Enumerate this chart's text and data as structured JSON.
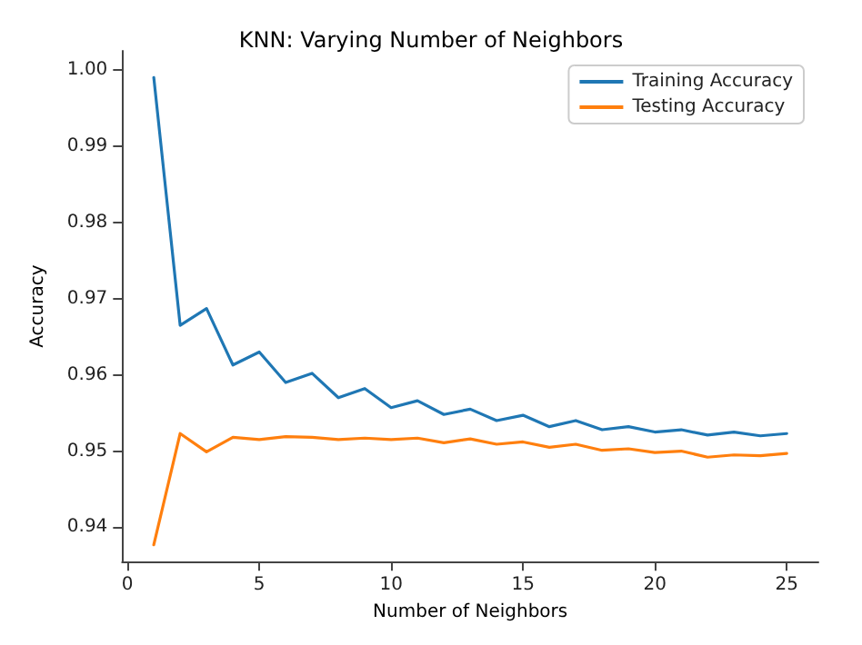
{
  "chart_data": {
    "type": "line",
    "title": "KNN: Varying Number of Neighbors",
    "xlabel": "Number of Neighbors",
    "ylabel": "Accuracy",
    "x": [
      1,
      2,
      3,
      4,
      5,
      6,
      7,
      8,
      9,
      10,
      11,
      12,
      13,
      14,
      15,
      16,
      17,
      18,
      19,
      20,
      21,
      22,
      23,
      24,
      25
    ],
    "series": [
      {
        "name": "Training Accuracy",
        "color": "#1f77b4",
        "values": [
          0.999,
          0.9665,
          0.9687,
          0.9613,
          0.963,
          0.959,
          0.9602,
          0.957,
          0.9582,
          0.9557,
          0.9566,
          0.9548,
          0.9555,
          0.954,
          0.9547,
          0.9532,
          0.954,
          0.9528,
          0.9532,
          0.9525,
          0.9528,
          0.9521,
          0.9525,
          0.952,
          0.9523
        ]
      },
      {
        "name": "Testing Accuracy",
        "color": "#ff7f0e",
        "values": [
          0.9377,
          0.9523,
          0.9499,
          0.9518,
          0.9515,
          0.9519,
          0.9518,
          0.9515,
          0.9517,
          0.9515,
          0.9517,
          0.9511,
          0.9516,
          0.9509,
          0.9512,
          0.9505,
          0.9509,
          0.9501,
          0.9503,
          0.9498,
          0.95,
          0.9492,
          0.9495,
          0.9494,
          0.9497
        ]
      }
    ],
    "xlim": [
      -0.2,
      26.2
    ],
    "xticks": [
      0,
      5,
      10,
      15,
      20,
      25
    ],
    "ylim": [
      0.9355,
      1.0025
    ],
    "yticks": [
      {
        "value": 0.94,
        "label": "0.94"
      },
      {
        "value": 0.95,
        "label": "0.95"
      },
      {
        "value": 0.96,
        "label": "0.96"
      },
      {
        "value": 0.97,
        "label": "0.97"
      },
      {
        "value": 0.98,
        "label": "0.98"
      },
      {
        "value": 0.99,
        "label": "0.99"
      },
      {
        "value": 1.0,
        "label": "1.00"
      }
    ],
    "grid": false,
    "legend": "top right",
    "line_style": "solid",
    "marker": "none"
  }
}
